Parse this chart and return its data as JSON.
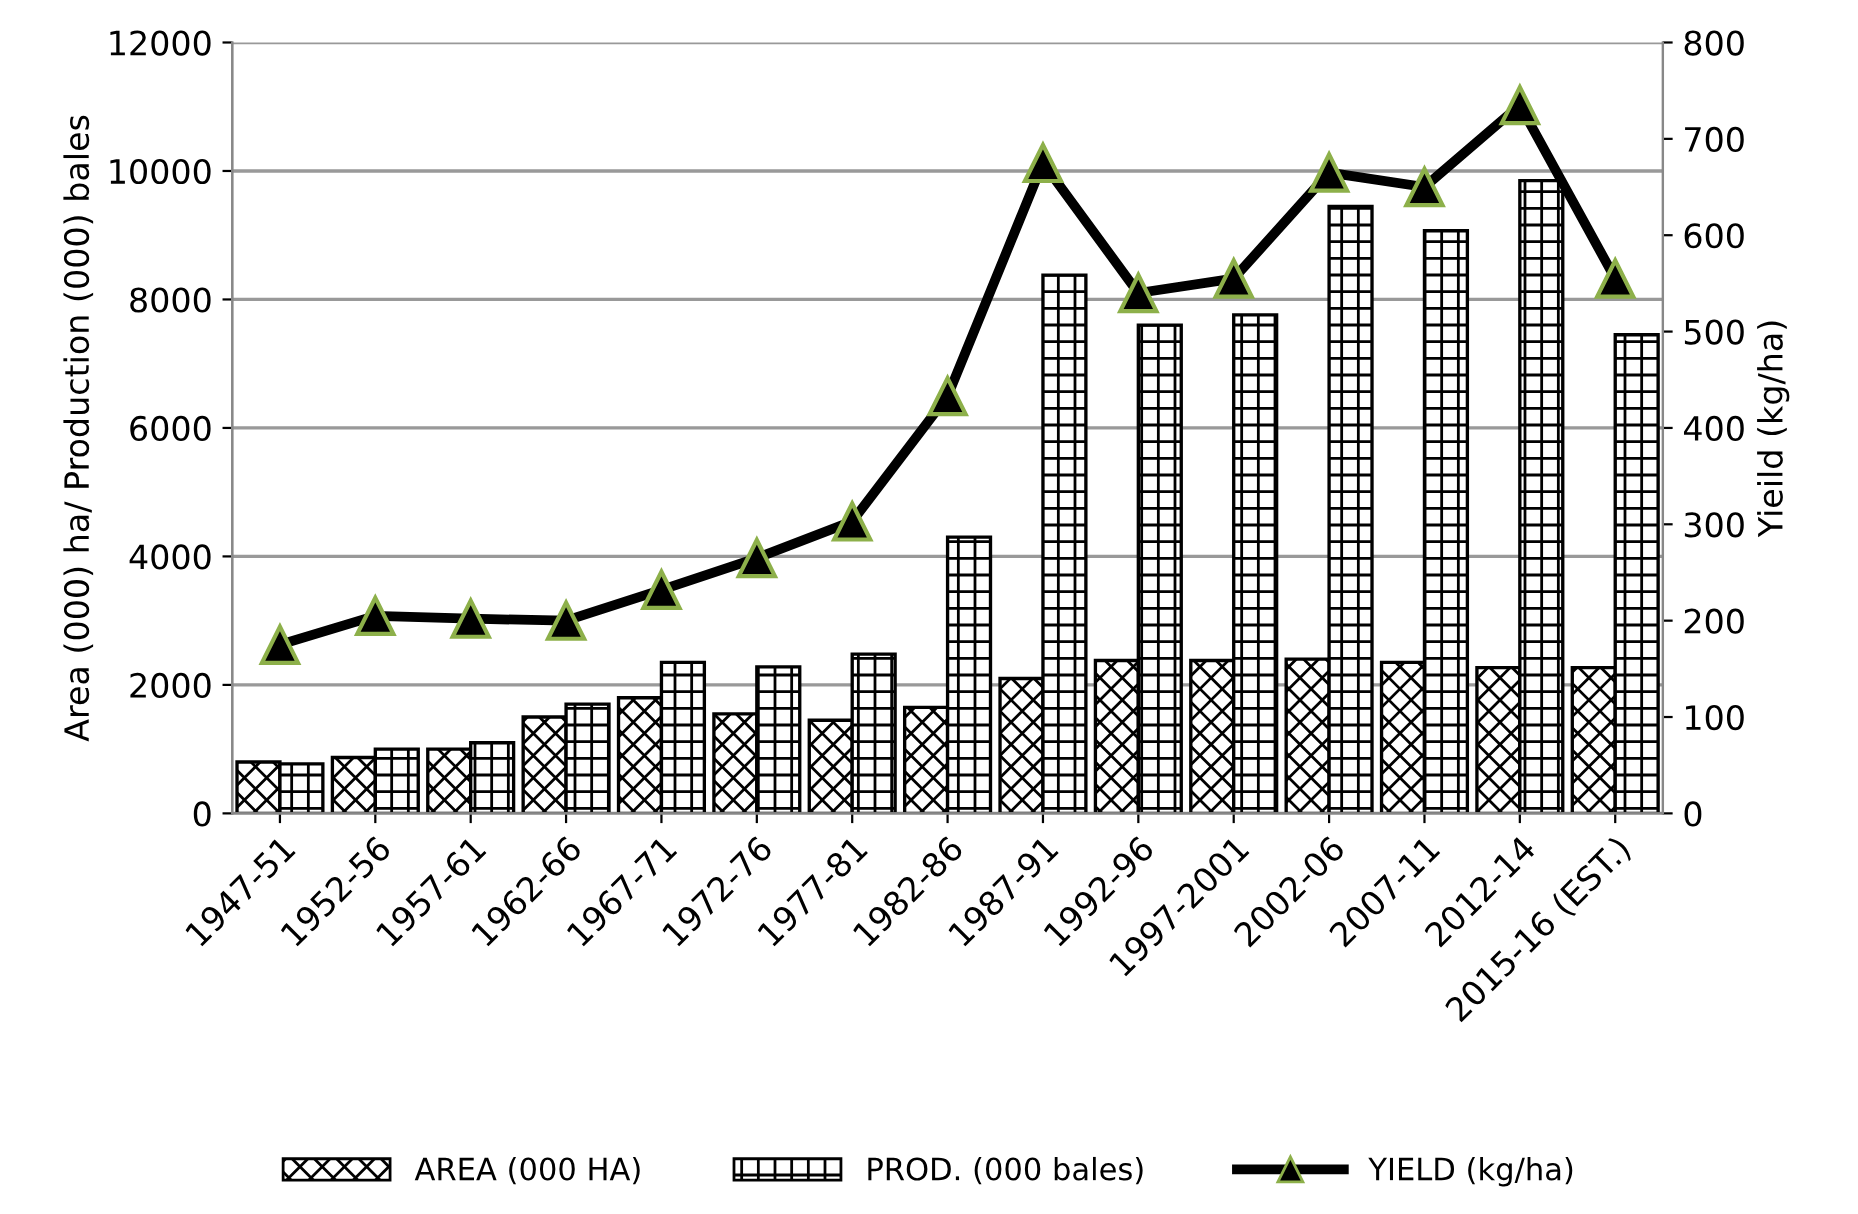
{
  "chart_data": {
    "type": "bar",
    "ylabel": "Area (000) ha/ Production (000) bales",
    "y2label": "Yieild (kg/ha)",
    "categories": [
      "1947-51",
      "1952-56",
      "1957-61",
      "1962-66",
      "1967-71",
      "1972-76",
      "1977-81",
      "1982-86",
      "1987-91",
      "1992-96",
      "1997-2001",
      "2002-06",
      "2007-11",
      "2012-14",
      "2015-16 (EST.)"
    ],
    "series": [
      {
        "name": "AREA (000 HA)",
        "color": "#000000",
        "values": [
          800,
          870,
          1000,
          1500,
          1800,
          1550,
          1450,
          1650,
          2100,
          2380,
          2380,
          2400,
          2350,
          2270,
          2270
        ]
      },
      {
        "name": "PROD. (000 bales)",
        "color": "#000000",
        "values": [
          770,
          1000,
          1100,
          1700,
          2350,
          2280,
          2480,
          4300,
          8380,
          7600,
          7760,
          9450,
          9070,
          9850,
          7450
        ]
      },
      {
        "name": "YIELD (kg/ha)",
        "type": "line",
        "axis": "y2",
        "color": "#000000",
        "marker": "triangle",
        "values": [
          175,
          205,
          202,
          200,
          232,
          265,
          303,
          433,
          675,
          540,
          555,
          665,
          650,
          735,
          555
        ]
      }
    ],
    "ylim": [
      0,
      12000
    ],
    "yticks": [
      0,
      2000,
      4000,
      6000,
      8000,
      10000,
      12000
    ],
    "y2lim": [
      0,
      800
    ],
    "y2ticks": [
      0,
      100,
      200,
      300,
      400,
      500,
      600,
      700,
      800
    ],
    "grid": "y",
    "legend": "bottom"
  }
}
